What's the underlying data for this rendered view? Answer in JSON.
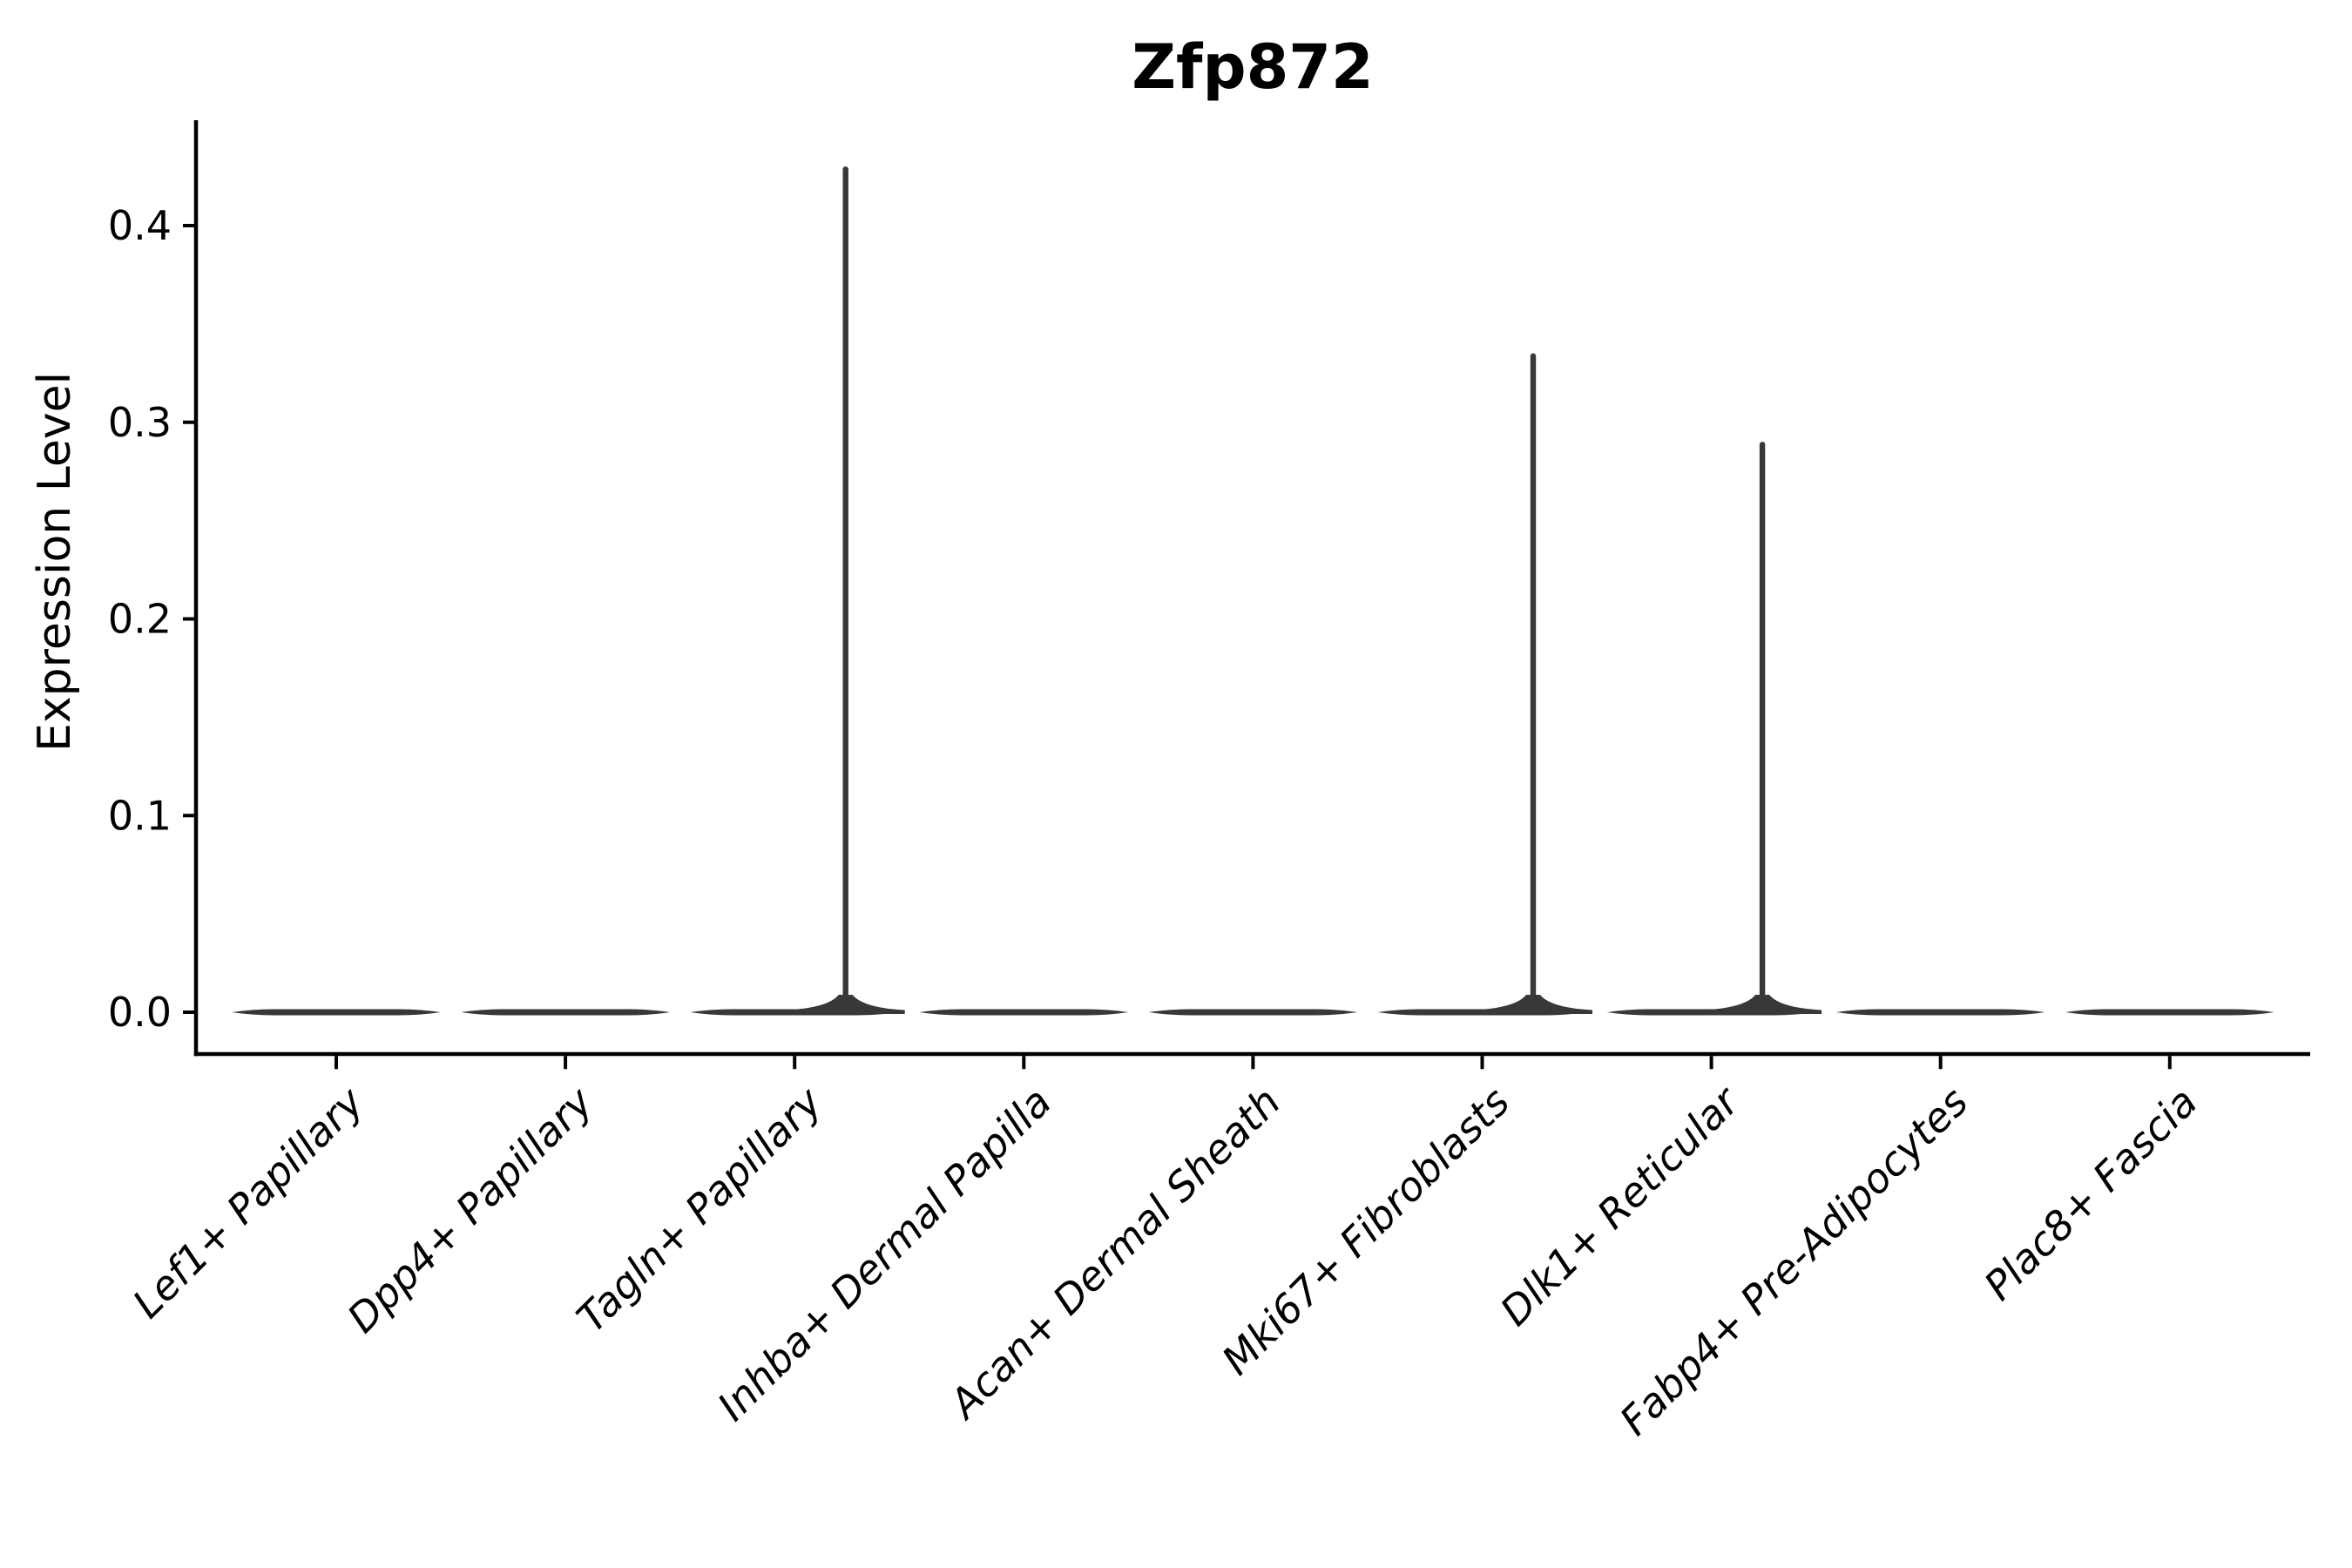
{
  "figure": {
    "background": "#ffffff"
  },
  "style": {
    "violin_color": "#383838",
    "axis_color": "#000000",
    "text_color": "#000000"
  },
  "chart_data": {
    "type": "violin",
    "title": "Zfp872",
    "xlabel": "",
    "ylabel": "Expression Level",
    "legend": "none",
    "grid": false,
    "ylim": [
      -0.021,
      0.454
    ],
    "yticks": [
      0,
      0.1,
      0.2,
      0.3,
      0.4
    ],
    "ytick_labels": [
      "0.0",
      "0.1",
      "0.2",
      "0.3",
      "0.4"
    ],
    "categories": [
      "Lef1+ Papillary",
      "Dpp4+ Papillary",
      "Tagln+ Papillary",
      "Inhba+ Dermal Papilla",
      "Acan+ Dermal Sheath",
      "Mki67+ Fibroblasts",
      "Dlk1+ Reticular",
      "Fabp4+ Pre-Adipocytes",
      "Plac8+ Fascia"
    ],
    "series": [
      {
        "category": "Lef1+ Papillary",
        "density_concentrated_at": 0,
        "max_expression": 0
      },
      {
        "category": "Dpp4+ Papillary",
        "density_concentrated_at": 0,
        "max_expression": 0
      },
      {
        "category": "Tagln+ Papillary",
        "density_concentrated_at": 0,
        "max_expression": 0.43
      },
      {
        "category": "Inhba+ Dermal Papilla",
        "density_concentrated_at": 0,
        "max_expression": 0
      },
      {
        "category": "Acan+ Dermal Sheath",
        "density_concentrated_at": 0,
        "max_expression": 0
      },
      {
        "category": "Mki67+ Fibroblasts",
        "density_concentrated_at": 0,
        "max_expression": 0.335
      },
      {
        "category": "Dlk1+ Reticular",
        "density_concentrated_at": 0,
        "max_expression": 0.29
      },
      {
        "category": "Fabp4+ Pre-Adipocytes",
        "density_concentrated_at": 0,
        "max_expression": 0
      },
      {
        "category": "Plac8+ Fascia",
        "density_concentrated_at": 0,
        "max_expression": 0
      }
    ]
  }
}
